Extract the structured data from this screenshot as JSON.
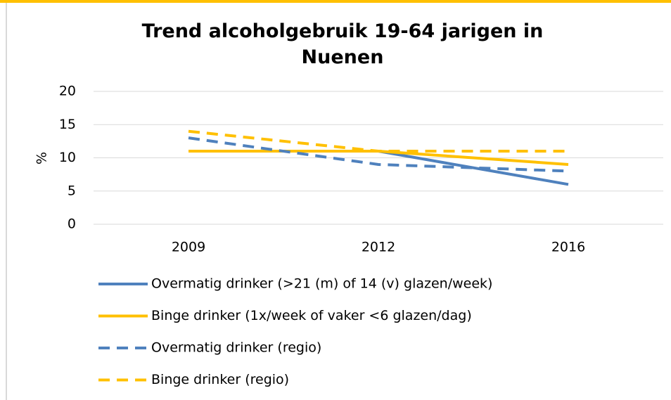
{
  "chart_data": {
    "type": "line",
    "title": "Trend alcoholgebruik 19-64 jarigen in Nuenen",
    "y_label": "%",
    "categories": [
      "2009",
      "2012",
      "2016"
    ],
    "series": [
      {
        "name": "Overmatig drinker (>21 (m) of 14 (v) glazen/week)",
        "color": "#4f81bd",
        "dashed": false,
        "values": [
          11,
          11,
          6
        ]
      },
      {
        "name": "Binge drinker (1x/week of vaker <6 glazen/dag)",
        "color": "#ffc000",
        "dashed": false,
        "values": [
          11,
          11,
          9
        ]
      },
      {
        "name": "Overmatig drinker (regio)",
        "color": "#4f81bd",
        "dashed": true,
        "values": [
          13,
          9,
          8
        ]
      },
      {
        "name": "Binge drinker (regio)",
        "color": "#ffc000",
        "dashed": true,
        "values": [
          14,
          11,
          11
        ]
      }
    ],
    "ylim": [
      0,
      20
    ],
    "yticks": [
      0,
      5,
      10,
      15,
      20
    ],
    "grid": true
  }
}
